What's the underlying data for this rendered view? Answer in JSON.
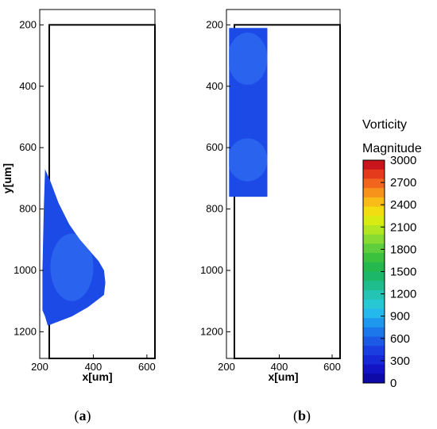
{
  "chart_data": [
    {
      "type": "heatmap",
      "caption_open": "(",
      "caption_letter": "a",
      "caption_close": ")",
      "xlabel": "x[um]",
      "ylabel": "y[um]",
      "xlim": [
        200,
        630
      ],
      "ylim": [
        150,
        1230
      ],
      "y_inverted": true,
      "x_ticks": [
        200,
        400,
        600
      ],
      "y_ticks": [
        200,
        400,
        600,
        800,
        1000,
        1200
      ],
      "frame": {
        "x": [
          210,
          610
        ],
        "y": [
          200,
          1250
        ]
      },
      "region_outline": [
        [
          220,
          670
        ],
        [
          240,
          710
        ],
        [
          270,
          780
        ],
        [
          310,
          850
        ],
        [
          350,
          900
        ],
        [
          390,
          940
        ],
        [
          420,
          970
        ],
        [
          440,
          1000
        ],
        [
          445,
          1040
        ],
        [
          440,
          1080
        ],
        [
          380,
          1120
        ],
        [
          320,
          1150
        ],
        [
          260,
          1170
        ],
        [
          230,
          1180
        ],
        [
          220,
          1150
        ],
        [
          210,
          1130
        ],
        [
          210,
          1000
        ],
        [
          215,
          800
        ]
      ],
      "region_color": "#1c4ae6",
      "sub_regions": [
        {
          "center": [
            320,
            990
          ],
          "radius_x": 80,
          "radius_y": 110,
          "color": "#2a63ee"
        }
      ]
    },
    {
      "type": "heatmap",
      "caption_open": "(",
      "caption_letter": "b",
      "caption_close": ")",
      "xlabel": "x[um]",
      "ylabel": "",
      "xlim": [
        200,
        630
      ],
      "ylim": [
        150,
        1230
      ],
      "y_inverted": true,
      "x_ticks": [
        200,
        400,
        600
      ],
      "y_ticks": [
        200,
        400,
        600,
        800,
        1000,
        1200
      ],
      "frame": {
        "x": [
          210,
          610
        ],
        "y": [
          200,
          1250
        ]
      },
      "region_outline": [
        [
          210,
          210
        ],
        [
          355,
          210
        ],
        [
          355,
          760
        ],
        [
          210,
          760
        ]
      ],
      "region_color": "#1c4ae6",
      "sub_regions": [
        {
          "center": [
            280,
            310
          ],
          "radius_x": 75,
          "radius_y": 85,
          "color": "#2a63ee"
        },
        {
          "center": [
            280,
            640
          ],
          "radius_x": 75,
          "radius_y": 70,
          "color": "#2a63ee"
        }
      ]
    }
  ],
  "legend": {
    "title_line1": "Vorticity",
    "title_line2": "Magnitude",
    "levels": [
      3000,
      2700,
      2400,
      2100,
      1800,
      1500,
      1200,
      900,
      600,
      300,
      0
    ],
    "labels": [
      "3000",
      "2700",
      "2400",
      "2100",
      "1800",
      "1500",
      "1200",
      "900",
      "600",
      "300",
      "0"
    ],
    "colors_top_to_bottom": [
      "#c8151b",
      "#e43b1d",
      "#f1661c",
      "#f7921a",
      "#f8bb17",
      "#f2dc12",
      "#d8ec13",
      "#b2e623",
      "#87db33",
      "#5fce3c",
      "#3cc13f",
      "#25b94d",
      "#1db76a",
      "#1fbd8e",
      "#24c3b3",
      "#27c8d3",
      "#24b8ec",
      "#1e98ee",
      "#1c78ea",
      "#1c5ae6",
      "#1a3fe0",
      "#1728d6",
      "#1314c4",
      "#0d0aa8"
    ]
  }
}
